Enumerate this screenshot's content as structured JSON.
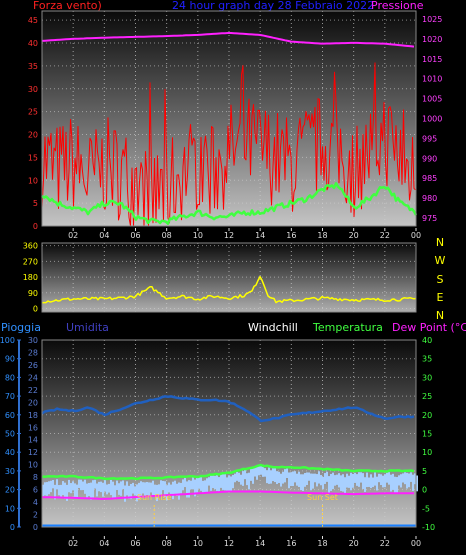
{
  "header1": {
    "left": "Forza vento)",
    "center": "24 hour graph day  28 Febbraio 2022",
    "right": "Pressione",
    "left_color": "#ff2020",
    "center_color": "#2020ff",
    "right_color": "#ff20ff"
  },
  "header3": {
    "pioggia": "Pioggia",
    "umidita": "Umidita",
    "windchill": "Windchill",
    "temperatura": "Temperatura",
    "dewpoint": "Dew Point (°C)",
    "pioggia_color": "#3090ff",
    "umidita_color": "#4040c0",
    "windchill_color": "#ffffff",
    "temperatura_color": "#40ff40",
    "dewpoint_color": "#ff20ff"
  },
  "compass": [
    "N",
    "W",
    "S",
    "E",
    "N"
  ],
  "sun": {
    "rise": "Sun Rise",
    "set": "Sun Set",
    "rise_hour": 7.2,
    "set_hour": 18.0
  },
  "chart_data": [
    {
      "type": "line",
      "title": "24 hour graph day  28 Febbraio 2022",
      "x_tick_labels": [
        "02",
        "04",
        "06",
        "08",
        "10",
        "12",
        "14",
        "16",
        "18",
        "20",
        "22",
        "00"
      ],
      "left_axis": {
        "label": "Forza vento)",
        "ticks": [
          0,
          5,
          10,
          15,
          20,
          25,
          30,
          35,
          40,
          45
        ],
        "ylim": [
          0,
          47
        ]
      },
      "right_axis": {
        "label": "Pressione",
        "ticks": [
          975,
          980,
          985,
          990,
          995,
          1000,
          1005,
          1010,
          1015,
          1020,
          1025
        ],
        "ylim": [
          973,
          1027
        ]
      },
      "series": [
        {
          "name": "Pressione",
          "color": "#ff20ff",
          "axis": "right",
          "x": [
            0,
            2,
            4,
            6,
            8,
            10,
            12,
            14,
            16,
            18,
            20,
            22,
            24
          ],
          "values": [
            1019.5,
            1020.0,
            1020.3,
            1020.5,
            1020.7,
            1021.0,
            1021.5,
            1021.0,
            1019.3,
            1018.8,
            1019.0,
            1018.8,
            1018.0
          ]
        },
        {
          "color": "#40ff40",
          "axis": "left",
          "x": [
            0,
            1,
            2,
            3,
            4,
            5,
            6,
            7,
            8,
            9,
            10,
            11,
            12,
            13,
            14,
            15,
            16,
            17,
            18,
            19,
            20,
            21,
            22,
            23,
            24
          ],
          "values": [
            7,
            5,
            4,
            3,
            5,
            5,
            2,
            1,
            1,
            2,
            3,
            2,
            2,
            3,
            3,
            4,
            5,
            6,
            8,
            9,
            4,
            6,
            9,
            5,
            3
          ]
        },
        {
          "name": "Forza vento)",
          "color": "#ff0000",
          "axis": "left",
          "x": [
            0,
            1,
            2,
            3,
            4,
            5,
            6,
            7,
            8,
            9,
            10,
            11,
            12,
            13,
            14,
            15,
            16,
            17,
            18,
            19,
            20,
            21,
            22,
            23,
            24
          ],
          "values": [
            15,
            12,
            14,
            10,
            13,
            12,
            9,
            6,
            8,
            12,
            14,
            12,
            16,
            18,
            17,
            15,
            13,
            16,
            18,
            17,
            12,
            16,
            20,
            15,
            10
          ]
        }
      ]
    },
    {
      "type": "line",
      "x_tick_labels": [],
      "left_axis": {
        "ticks": [
          0,
          90,
          180,
          270,
          360
        ],
        "ylim": [
          -20,
          375
        ]
      },
      "series": [
        {
          "color": "#ffff00",
          "x": [
            0,
            2,
            4,
            5,
            6,
            7,
            8,
            9,
            10,
            11,
            12,
            13,
            13.5,
            14,
            14.5,
            15,
            16,
            18,
            20,
            22,
            24
          ],
          "values": [
            40,
            55,
            55,
            60,
            70,
            120,
            60,
            70,
            55,
            70,
            60,
            75,
            100,
            190,
            80,
            40,
            45,
            60,
            50,
            50,
            55
          ]
        }
      ]
    },
    {
      "type": "line",
      "x_tick_labels": [
        "02",
        "04",
        "06",
        "08",
        "10",
        "12",
        "14",
        "16",
        "18",
        "20",
        "22",
        "00"
      ],
      "left_axis_outer": {
        "label": "Pioggia",
        "ticks": [
          0,
          10,
          20,
          30,
          40,
          50,
          60,
          70,
          80,
          90,
          100
        ],
        "ylim": [
          0,
          100
        ]
      },
      "left_axis_inner": {
        "label": "Umidita",
        "ticks": [
          0,
          2,
          4,
          6,
          8,
          10,
          12,
          14,
          16,
          18,
          20,
          22,
          24,
          26,
          28,
          30
        ],
        "ylim": [
          0,
          30
        ]
      },
      "right_axis": {
        "label": "Dew Point (°C)",
        "ticks": [
          -10,
          -5,
          0,
          5,
          10,
          15,
          20,
          25,
          30,
          35,
          40
        ],
        "ylim": [
          -10,
          40
        ]
      },
      "series": [
        {
          "name": "Umidita",
          "color": "#2060c0",
          "axis": "left_outer",
          "x": [
            0,
            1,
            2,
            3,
            4,
            5,
            6,
            7,
            8,
            9,
            10,
            11,
            12,
            13,
            14,
            15,
            16,
            17,
            18,
            19,
            20,
            21,
            22,
            23,
            24
          ],
          "values": [
            61,
            63,
            62,
            64,
            60,
            63,
            66,
            68,
            70,
            69,
            68,
            68,
            67,
            63,
            57,
            58,
            60,
            61,
            62,
            63,
            64,
            61,
            58,
            59,
            59
          ]
        },
        {
          "name": "Windchill",
          "color": "#a8d0ff",
          "axis": "right",
          "x": [
            0,
            2,
            4,
            6,
            8,
            10,
            12,
            13,
            14,
            15,
            16,
            18,
            20,
            22,
            24
          ],
          "values": [
            2,
            2,
            2,
            1.5,
            2,
            3,
            4,
            5,
            6,
            5,
            5,
            4,
            4,
            4,
            4
          ]
        },
        {
          "name": "Temperatura",
          "color": "#40ff40",
          "axis": "right",
          "x": [
            0,
            2,
            4,
            6,
            8,
            9,
            10,
            11,
            12,
            13,
            14,
            15,
            16,
            18,
            20,
            22,
            24
          ],
          "values": [
            3.5,
            3.5,
            3,
            3,
            3.2,
            3.5,
            3.5,
            4,
            4.5,
            5.5,
            6.5,
            6,
            6,
            5.5,
            5,
            5,
            5
          ]
        },
        {
          "name": "Dew Point (°C)",
          "color": "#ff20ff",
          "axis": "right",
          "x": [
            0,
            2,
            4,
            6,
            8,
            10,
            12,
            14,
            16,
            18,
            20,
            22,
            24
          ],
          "values": [
            -2,
            -2.2,
            -2.5,
            -2,
            -1.5,
            -1,
            -0.5,
            -0.5,
            -0.8,
            -1,
            -1.2,
            -1,
            -1
          ]
        },
        {
          "name": "Pioggia",
          "color": "#1a80ff",
          "axis": "left_outer",
          "x": [
            0,
            24
          ],
          "values": [
            0,
            0
          ]
        }
      ]
    }
  ]
}
